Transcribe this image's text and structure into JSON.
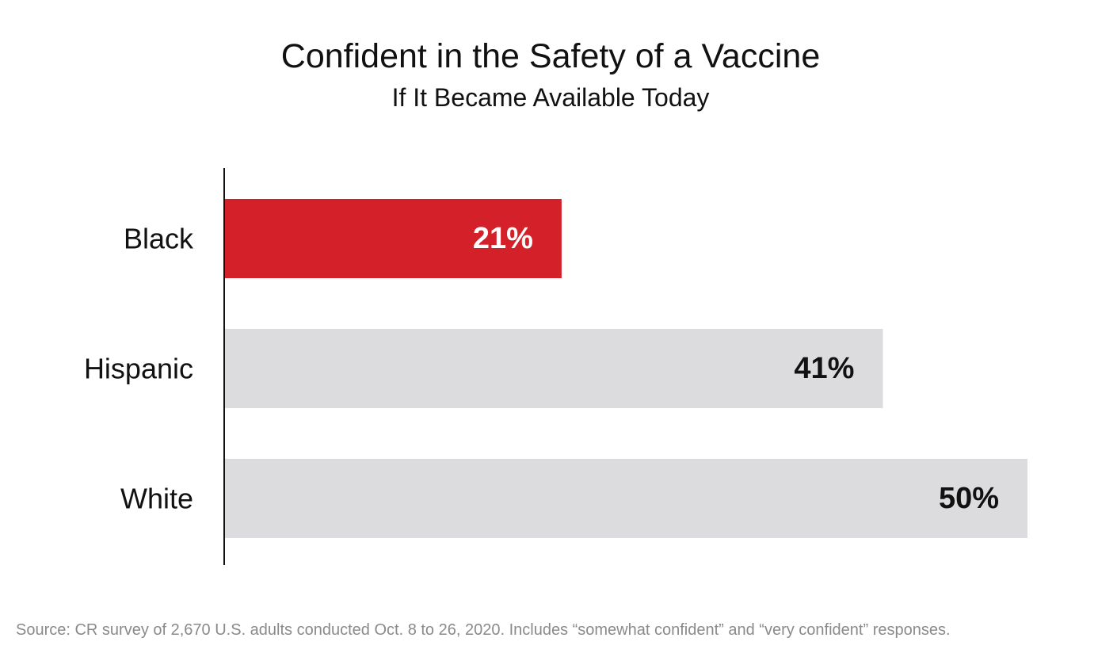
{
  "chart_data": {
    "type": "bar",
    "orientation": "horizontal",
    "title": "Confident in the Safety of a Vaccine",
    "subtitle": "If It Became Available Today",
    "categories": [
      "Black",
      "Hispanic",
      "White"
    ],
    "values": [
      21,
      41,
      50
    ],
    "value_labels": [
      "21%",
      "41%",
      "50%"
    ],
    "xlim": [
      0,
      50
    ],
    "grid": false,
    "legend": "none",
    "bar_colors": [
      "#d42029",
      "#dcdcde",
      "#dcdcde"
    ],
    "label_colors": [
      "#ffffff",
      "#111111",
      "#111111"
    ],
    "axis_color": "#111111",
    "source": "Source: CR survey of 2,670 U.S. adults conducted Oct. 8 to 26, 2020. Includes “somewhat confident” and “very confident” responses."
  }
}
